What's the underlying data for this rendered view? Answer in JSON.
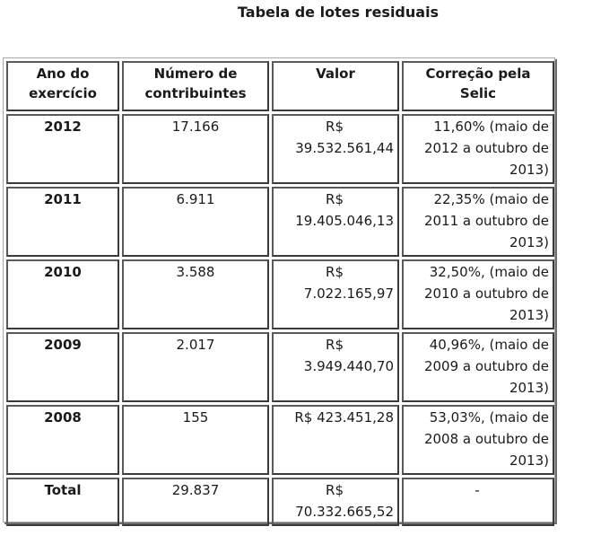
{
  "title": "Tabela de lotes residuais",
  "table": {
    "headers": [
      "Ano do exercício",
      "Número de contribuintes",
      "Valor",
      "Correção pela Selic"
    ],
    "rows": [
      {
        "year": "2012",
        "count": "17.166",
        "value_prefix": "R$",
        "value_amount": "39.532.561,44",
        "correction": "11,60% (maio de 2012 a outubro de 2013)"
      },
      {
        "year": "2011",
        "count": "6.911",
        "value_prefix": "R$",
        "value_amount": "19.405.046,13",
        "correction": "22,35% (maio de 2011 a outubro de 2013)"
      },
      {
        "year": "2010",
        "count": "3.588",
        "value_prefix": "R$",
        "value_amount": "7.022.165,97",
        "correction": "32,50%, (maio de 2010 a outubro de 2013)"
      },
      {
        "year": "2009",
        "count": "2.017",
        "value_prefix": "R$",
        "value_amount": "3.949.440,70",
        "correction": "40,96%, (maio de 2009 a outubro de 2013)"
      },
      {
        "year": "2008",
        "count": "155",
        "value_full": "R$ 423.451,28",
        "correction": "53,03%, (maio de 2008 a outubro de 2013)"
      },
      {
        "year": "Total",
        "count": "29.837",
        "value_prefix": "R$",
        "value_amount": "70.332.665,52",
        "correction": "-"
      }
    ]
  }
}
